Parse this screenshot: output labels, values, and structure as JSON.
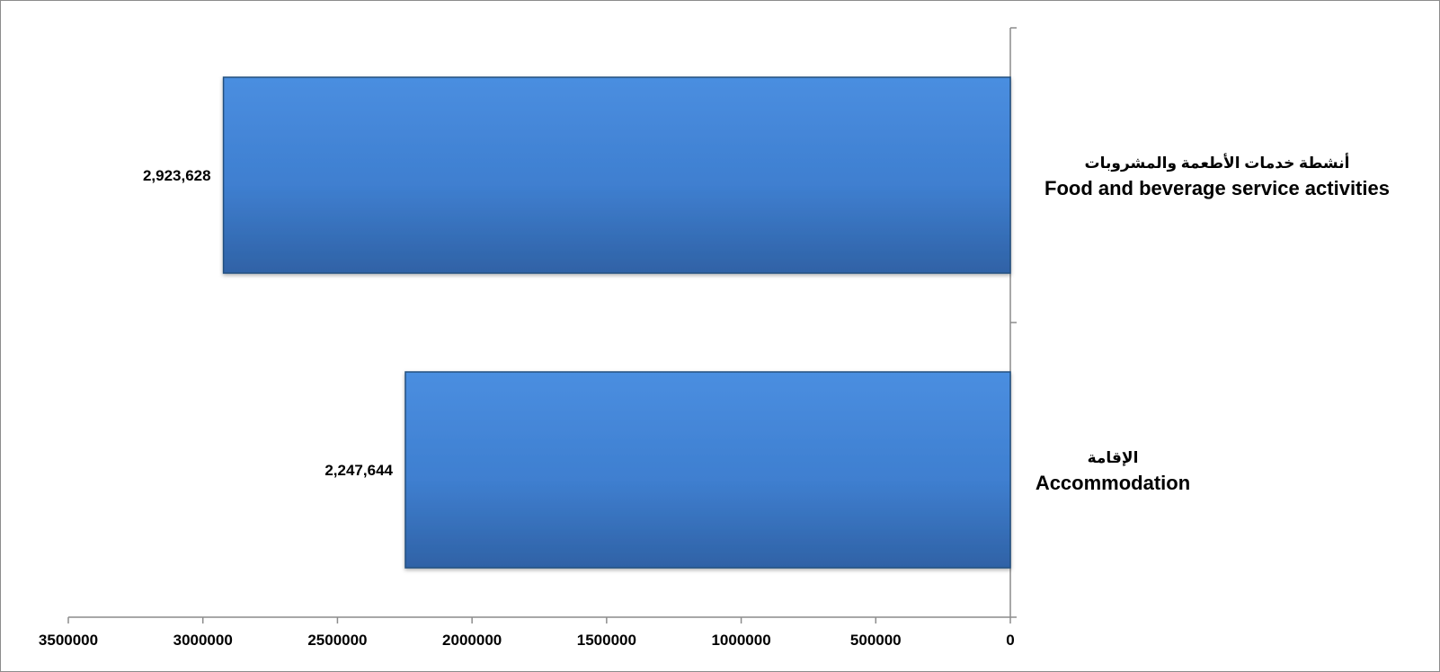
{
  "chart_data": {
    "type": "bar",
    "orientation": "horizontal",
    "x_axis_reversed": true,
    "category_axis_position": "right",
    "categories": [
      {
        "label_ar": "أنشطة خدمات الأطعمة والمشروبات",
        "label_en": "Food and beverage service activities"
      },
      {
        "label_ar": "الإقامة",
        "label_en": "Accommodation"
      }
    ],
    "values": [
      2923628,
      2247644
    ],
    "data_labels": [
      "2,923,628",
      "2,247,644"
    ],
    "xlim": [
      0,
      3500000
    ],
    "x_ticks": [
      0,
      500000,
      1000000,
      1500000,
      2000000,
      2500000,
      3000000,
      3500000
    ],
    "x_tick_labels": [
      "0",
      "500000",
      "1000000",
      "1500000",
      "2000000",
      "2500000",
      "3000000",
      "3500000"
    ],
    "grid": false,
    "legend": "none",
    "title": "",
    "xlabel": "",
    "ylabel": "",
    "colors": {
      "bar_light": "#4a8ee0",
      "bar_mid": "#3f7fd0",
      "bar_dark": "#2f62a6",
      "bar_edge": "#24507f",
      "axis": "#8c8c8c"
    }
  }
}
